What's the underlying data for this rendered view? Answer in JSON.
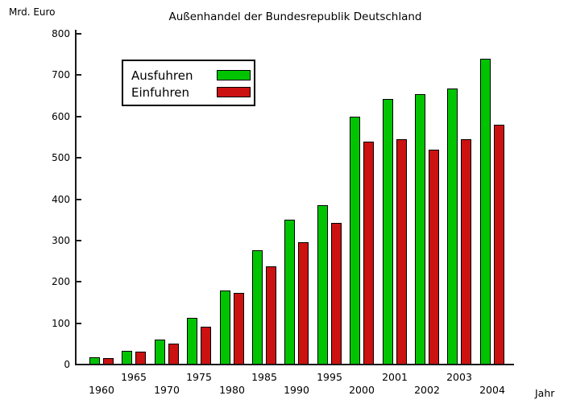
{
  "title": "Außenhandel der Bundesrepublik Deutschland",
  "y_axis_unit": "Mrd. Euro",
  "x_axis_unit": "Jahr",
  "legend": {
    "items": [
      {
        "label": "Ausfuhren",
        "color": "#00c400"
      },
      {
        "label": "Einfuhren",
        "color": "#cc1111"
      }
    ]
  },
  "colors": {
    "exports_green": "#00c400",
    "imports_red": "#cc1111",
    "axis": "#1a1a1a",
    "background": "#ffffff",
    "text": "#000000"
  },
  "chart_data": {
    "type": "bar",
    "title": "Außenhandel der Bundesrepublik Deutschland",
    "xlabel": "Jahr",
    "ylabel": "Mrd. Euro",
    "categories": [
      "1960",
      "1965",
      "1970",
      "1975",
      "1980",
      "1985",
      "1990",
      "1995",
      "2000",
      "2001",
      "2002",
      "2003",
      "2004"
    ],
    "series": [
      {
        "name": "Ausfuhren",
        "color": "#00c400",
        "values": [
          16,
          32,
          58,
          110,
          178,
          274,
          348,
          384,
          597,
          641,
          652,
          665,
          737
        ]
      },
      {
        "name": "Einfuhren",
        "color": "#cc1111",
        "values": [
          13,
          30,
          48,
          90,
          172,
          236,
          293,
          340,
          538,
          543,
          518,
          543,
          578
        ]
      }
    ],
    "ylim": [
      0,
      800
    ],
    "yticks": [
      0,
      100,
      200,
      300,
      400,
      500,
      600,
      700,
      800
    ],
    "grid": false,
    "legend_position": "upper-left-inside",
    "x_label_layout": "staggered-two-rows"
  }
}
